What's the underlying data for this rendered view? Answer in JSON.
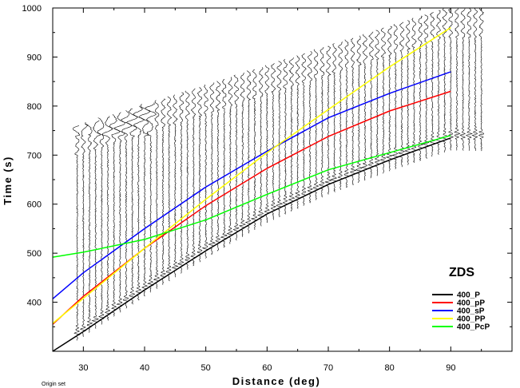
{
  "chart_data": {
    "type": "line",
    "xlabel": "Distance (deg)",
    "ylabel": "Time (s)",
    "xlim": [
      25,
      100
    ],
    "ylim": [
      300,
      1000
    ],
    "x_ticks": [
      30,
      40,
      50,
      60,
      70,
      80,
      90
    ],
    "y_ticks": [
      400,
      500,
      600,
      700,
      800,
      900,
      1000
    ],
    "station_label": "ZDS",
    "footnote": "Origin set",
    "legend_position": "right",
    "traces": {
      "distance_start": 29,
      "distance_end": 95,
      "distance_step": 1
    },
    "series": [
      {
        "name": "400_P",
        "color": "#000000",
        "x": [
          25,
          30,
          40,
          50,
          60,
          70,
          80,
          90
        ],
        "y": [
          300,
          340,
          425,
          505,
          580,
          640,
          690,
          735
        ]
      },
      {
        "name": "400_pP",
        "color": "#ff0000",
        "x": [
          25,
          30,
          40,
          50,
          60,
          70,
          80,
          90
        ],
        "y": [
          355,
          412,
          510,
          597,
          673,
          738,
          790,
          830
        ]
      },
      {
        "name": "400_sP",
        "color": "#0000ff",
        "x": [
          25,
          30,
          40,
          50,
          60,
          70,
          80,
          90
        ],
        "y": [
          407,
          460,
          550,
          635,
          708,
          776,
          826,
          870
        ]
      },
      {
        "name": "400_PP",
        "color": "#ffff00",
        "x": [
          25,
          30,
          40,
          50,
          60,
          70,
          80,
          90
        ],
        "y": [
          357,
          408,
          510,
          610,
          705,
          793,
          880,
          960
        ]
      },
      {
        "name": "400_PcP",
        "color": "#00ff00",
        "x": [
          25,
          30,
          40,
          50,
          60,
          70,
          80,
          90
        ],
        "y": [
          492,
          502,
          528,
          568,
          620,
          670,
          705,
          740
        ]
      }
    ]
  }
}
